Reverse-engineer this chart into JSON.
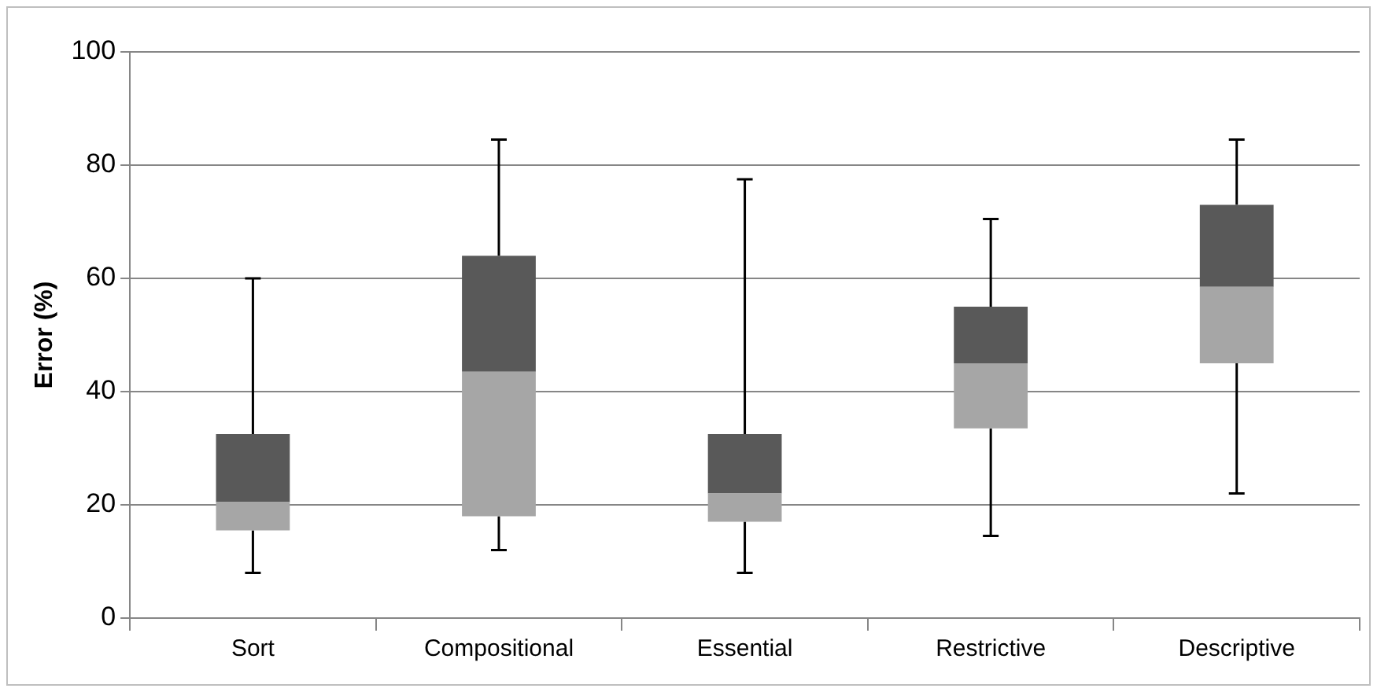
{
  "chart_data": {
    "type": "box",
    "ylabel": "Error (%)",
    "categories": [
      "Sort",
      "Compositional",
      "Essential",
      "Restrictive",
      "Descriptive"
    ],
    "boxes": [
      {
        "low": 8,
        "q1": 15.5,
        "median": 20.5,
        "q3": 32.5,
        "high": 60
      },
      {
        "low": 12,
        "q1": 18,
        "median": 43.5,
        "q3": 64,
        "high": 84.5
      },
      {
        "low": 8,
        "q1": 17,
        "median": 22,
        "q3": 32.5,
        "high": 77.5
      },
      {
        "low": 14.5,
        "q1": 33.5,
        "median": 45,
        "q3": 55,
        "high": 70.5
      },
      {
        "low": 22,
        "q1": 45,
        "median": 58.5,
        "q3": 73,
        "high": 84.5
      }
    ],
    "color": "#595959",
    "colors": [
      "#a6a6a6",
      "#a6a6a6",
      "#a6a6a6",
      "#a6a6a6",
      "#a6a6a6"
    ],
    "ylim": [
      0,
      100
    ],
    "yticks": [
      0,
      20,
      40,
      60,
      80,
      100
    ],
    "grid": "y",
    "legend": false
  }
}
